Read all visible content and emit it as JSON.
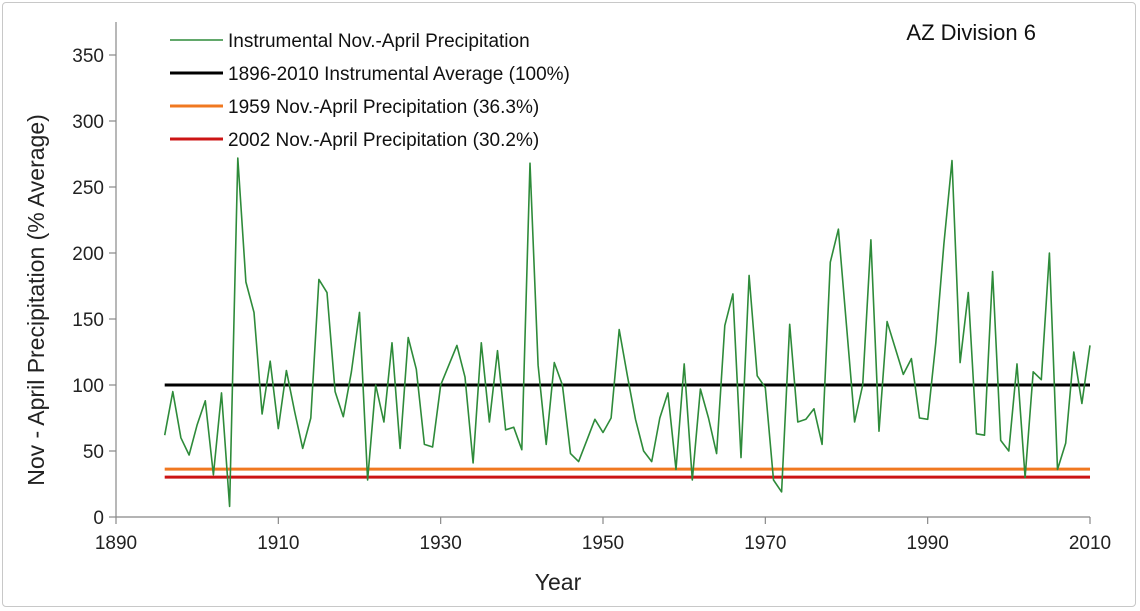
{
  "chart_data": {
    "type": "line",
    "annotation": "AZ Division 6",
    "xlabel": "Year",
    "ylabel": "Nov - April Precipitation (% Average)",
    "xlim": [
      1890,
      2010
    ],
    "ylim": [
      0,
      375
    ],
    "x_ticks": [
      1890,
      1910,
      1930,
      1950,
      1970,
      1990,
      2010
    ],
    "y_ticks": [
      0,
      50,
      100,
      150,
      200,
      250,
      300,
      350
    ],
    "x_tick_labels": [
      "1890",
      "1910",
      "1930",
      "1950",
      "1970",
      "1990",
      "2010"
    ],
    "y_tick_labels": [
      "0",
      "50",
      "100",
      "150",
      "200",
      "250",
      "300",
      "350"
    ],
    "grid": false,
    "legend_position": "top-left",
    "series": [
      {
        "name": "Instrumental Nov.-April Precipitation",
        "kind": "series",
        "color": "#2e8b3a",
        "x": [
          1896,
          1897,
          1898,
          1899,
          1900,
          1901,
          1902,
          1903,
          1904,
          1905,
          1906,
          1907,
          1908,
          1909,
          1910,
          1911,
          1912,
          1913,
          1914,
          1915,
          1916,
          1917,
          1918,
          1919,
          1920,
          1921,
          1922,
          1923,
          1924,
          1925,
          1926,
          1927,
          1928,
          1929,
          1930,
          1931,
          1932,
          1933,
          1934,
          1935,
          1936,
          1937,
          1938,
          1939,
          1940,
          1941,
          1942,
          1943,
          1944,
          1945,
          1946,
          1947,
          1948,
          1949,
          1950,
          1951,
          1952,
          1953,
          1954,
          1955,
          1956,
          1957,
          1958,
          1959,
          1960,
          1961,
          1962,
          1963,
          1964,
          1965,
          1966,
          1967,
          1968,
          1969,
          1970,
          1971,
          1972,
          1973,
          1974,
          1975,
          1976,
          1977,
          1978,
          1979,
          1980,
          1981,
          1982,
          1983,
          1984,
          1985,
          1986,
          1987,
          1988,
          1989,
          1990,
          1991,
          1992,
          1993,
          1994,
          1995,
          1996,
          1997,
          1998,
          1999,
          2000,
          2001,
          2002,
          2003,
          2004,
          2005,
          2006,
          2007,
          2008,
          2009,
          2010
        ],
        "values": [
          62,
          95,
          60,
          47,
          70,
          88,
          32,
          94,
          8,
          272,
          178,
          155,
          78,
          118,
          67,
          111,
          80,
          52,
          75,
          180,
          170,
          95,
          76,
          110,
          155,
          28,
          100,
          72,
          132,
          52,
          136,
          112,
          55,
          53,
          100,
          115,
          130,
          106,
          41,
          132,
          72,
          126,
          66,
          68,
          51,
          268,
          115,
          55,
          117,
          100,
          48,
          42,
          58,
          74,
          64,
          75,
          142,
          107,
          74,
          50,
          42,
          75,
          94,
          36,
          116,
          28,
          97,
          75,
          48,
          145,
          169,
          45,
          183,
          107,
          98,
          28,
          19,
          146,
          72,
          74,
          82,
          55,
          193,
          218,
          145,
          72,
          100,
          210,
          65,
          148,
          128,
          108,
          120,
          75,
          74,
          132,
          207,
          270,
          117,
          170,
          63,
          62,
          186,
          58,
          50,
          116,
          30,
          110,
          104,
          200,
          36,
          56,
          125,
          86,
          130
        ]
      },
      {
        "name": "1896-2010 Instrumental Average (100%)",
        "kind": "reference",
        "color": "#000000",
        "x": [
          1896,
          2010
        ],
        "values": [
          100,
          100
        ]
      },
      {
        "name": "1959 Nov.-April Precipitation (36.3%)",
        "kind": "reference",
        "color": "#f07820",
        "x": [
          1896,
          2010
        ],
        "values": [
          36.3,
          36.3
        ]
      },
      {
        "name": "2002 Nov.-April Precipitation (30.2%)",
        "kind": "reference",
        "color": "#cc1414",
        "x": [
          1896,
          2010
        ],
        "values": [
          30.2,
          30.2
        ]
      }
    ]
  }
}
